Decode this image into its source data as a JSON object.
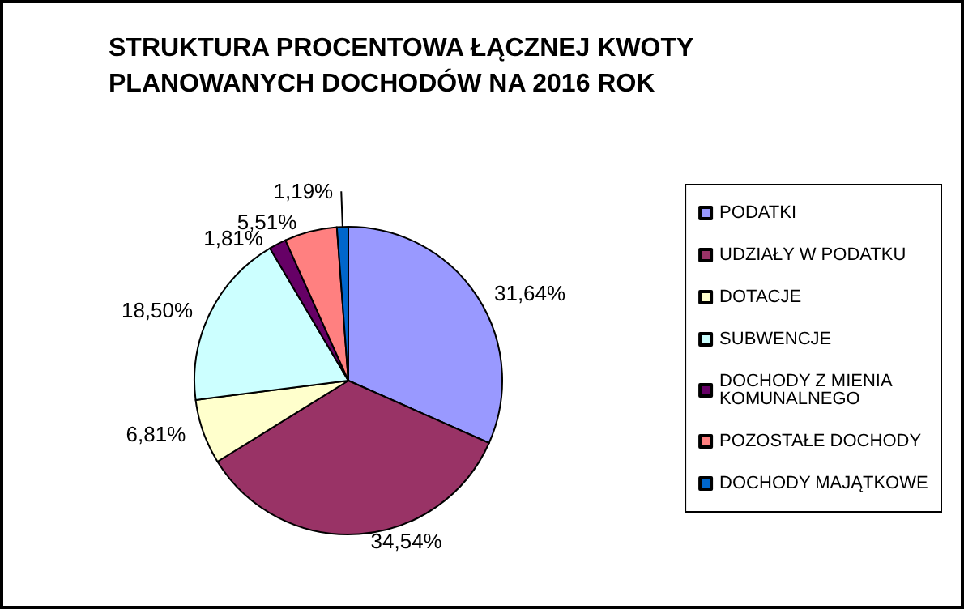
{
  "chart_data": {
    "type": "pie",
    "title": "STRUKTURA PROCENTOWA ŁĄCZNEJ KWOTY PLANOWANYCH DOCHODÓW NA 2016 ROK",
    "categories": [
      "PODATKI",
      "UDZIAŁY W PODATKU",
      "DOTACJE",
      "SUBWENCJE",
      "DOCHODY Z MIENIA KOMUNALNEGO",
      "POZOSTAŁE DOCHODY",
      "DOCHODY MAJĄTKOWE"
    ],
    "values": [
      31.64,
      34.54,
      6.81,
      18.5,
      1.81,
      5.51,
      1.19
    ],
    "value_labels": [
      "31,64%",
      "34,54%",
      "6,81%",
      "18,50%",
      "1,81%",
      "5,51%",
      "1,19%"
    ],
    "colors": [
      "#9999ff",
      "#993366",
      "#ffffcc",
      "#ccffff",
      "#660066",
      "#ff8080",
      "#0066cc"
    ],
    "legend": "right"
  }
}
